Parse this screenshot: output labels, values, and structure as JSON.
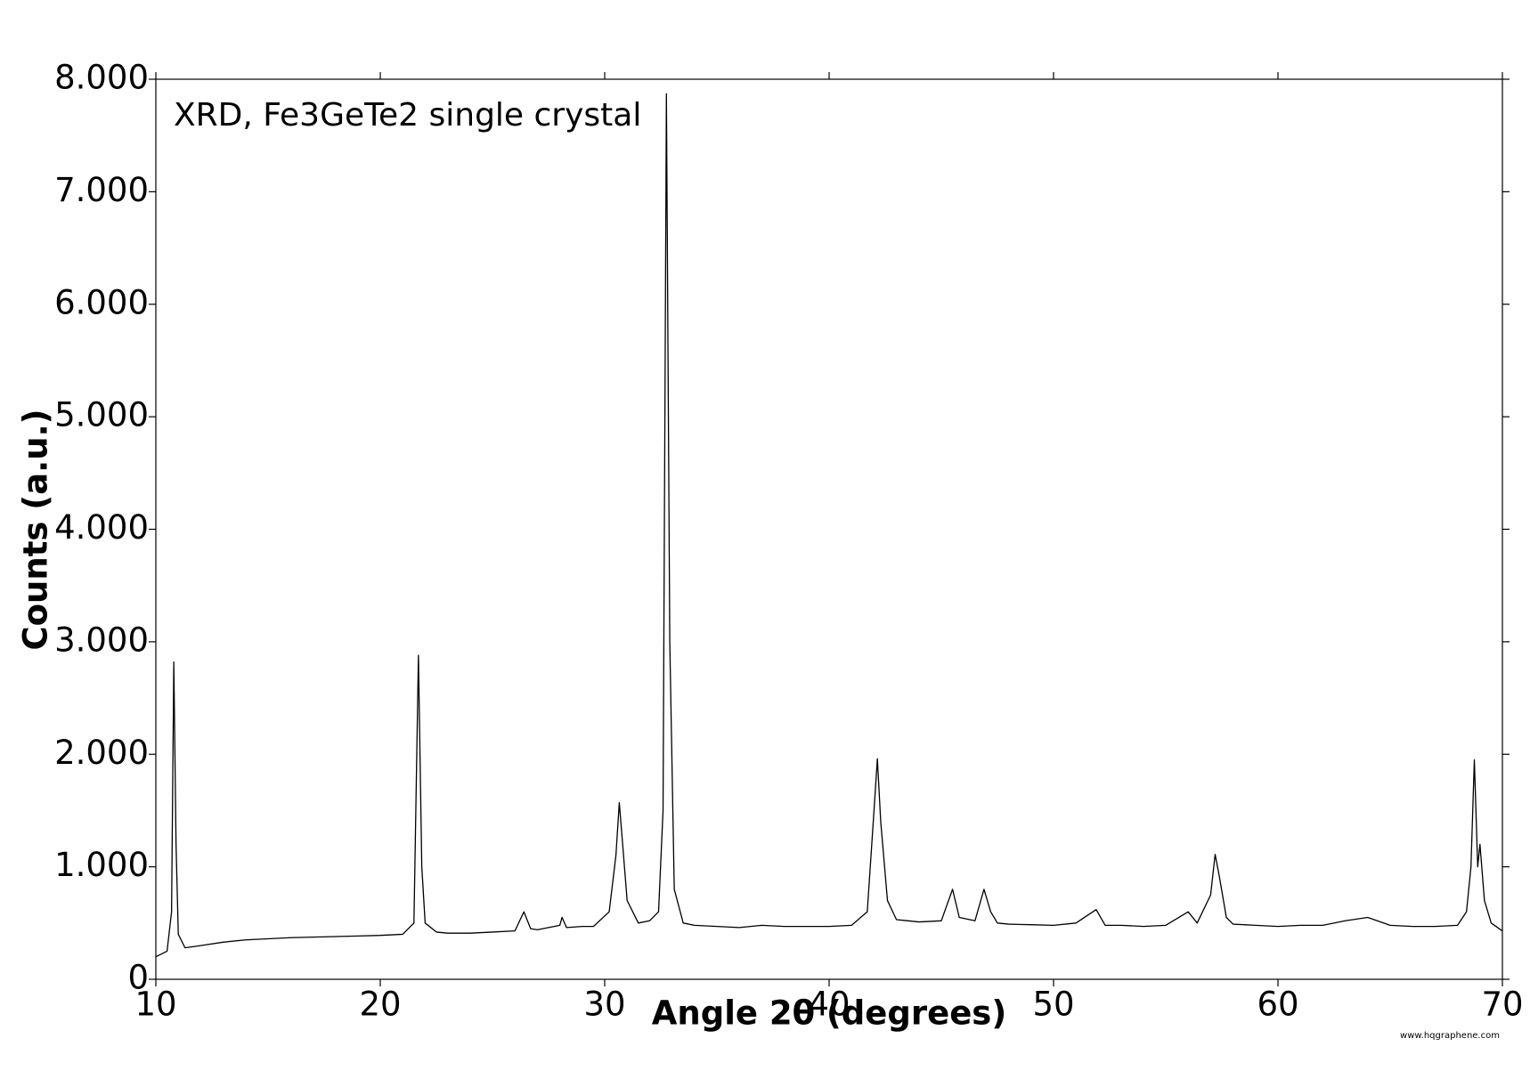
{
  "chart_data": {
    "type": "line",
    "annotation": "XRD, Fe3GeTe2 single crystal",
    "x_label": "Angle 2θ (degrees)",
    "y_label": "Counts (a.u.)",
    "source": "www.hqgraphene.com",
    "xlim": [
      10,
      70
    ],
    "ylim": [
      0,
      8000
    ],
    "xticks": [
      10,
      20,
      30,
      40,
      50,
      60,
      70
    ],
    "yticks": [
      0,
      {
        "value": 1000,
        "label": "1.000"
      },
      {
        "value": 2000,
        "label": "2.000"
      },
      {
        "value": 3000,
        "label": "3.000"
      },
      {
        "value": 4000,
        "label": "4.000"
      },
      {
        "value": 5000,
        "label": "5.000"
      },
      {
        "value": 6000,
        "label": "6.000"
      },
      {
        "value": 7000,
        "label": "7.000"
      },
      {
        "value": 8000,
        "label": "8.000"
      }
    ],
    "series": [
      {
        "color": "#000000",
        "x": [
          10,
          10.5,
          10.7,
          10.8,
          10.9,
          11.0,
          11.3,
          12,
          13,
          14,
          15,
          16,
          17,
          18,
          19,
          20,
          21,
          21.5,
          21.7,
          21.85,
          22,
          22.5,
          23,
          24,
          25,
          26,
          26.4,
          26.7,
          27,
          28,
          28.1,
          28.3,
          29,
          29.5,
          30.2,
          30.5,
          30.65,
          30.8,
          31,
          31.5,
          32,
          32.4,
          32.6,
          32.75,
          32.9,
          33.1,
          33.5,
          34,
          35,
          36,
          37,
          38,
          39,
          40,
          41,
          41.7,
          42.0,
          42.15,
          42.3,
          42.6,
          43,
          44,
          45,
          45.5,
          45.8,
          46.5,
          46.9,
          47.2,
          47.5,
          48,
          49,
          50,
          51,
          51.9,
          52.3,
          53,
          54,
          55,
          56,
          56.4,
          57,
          57.2,
          57.4,
          57.7,
          58,
          59,
          60,
          61,
          62,
          63,
          64,
          65,
          66,
          67,
          68,
          68.4,
          68.6,
          68.75,
          68.9,
          69,
          69.2,
          69.5,
          70
        ],
        "values": [
          200,
          250,
          600,
          2820,
          1200,
          400,
          280,
          300,
          330,
          350,
          360,
          370,
          375,
          380,
          385,
          390,
          400,
          500,
          2880,
          1000,
          500,
          420,
          410,
          410,
          420,
          430,
          600,
          450,
          440,
          480,
          550,
          460,
          470,
          470,
          600,
          1100,
          1570,
          1200,
          700,
          500,
          520,
          600,
          1500,
          7870,
          3000,
          800,
          500,
          480,
          470,
          460,
          480,
          470,
          470,
          470,
          480,
          600,
          1500,
          1960,
          1400,
          700,
          530,
          510,
          520,
          800,
          550,
          520,
          800,
          600,
          500,
          490,
          485,
          480,
          500,
          620,
          480,
          480,
          470,
          480,
          600,
          500,
          750,
          1110,
          900,
          550,
          490,
          480,
          470,
          480,
          480,
          520,
          550,
          480,
          470,
          470,
          480,
          600,
          1000,
          1950,
          1000,
          1200,
          700,
          500,
          430
        ]
      }
    ]
  }
}
